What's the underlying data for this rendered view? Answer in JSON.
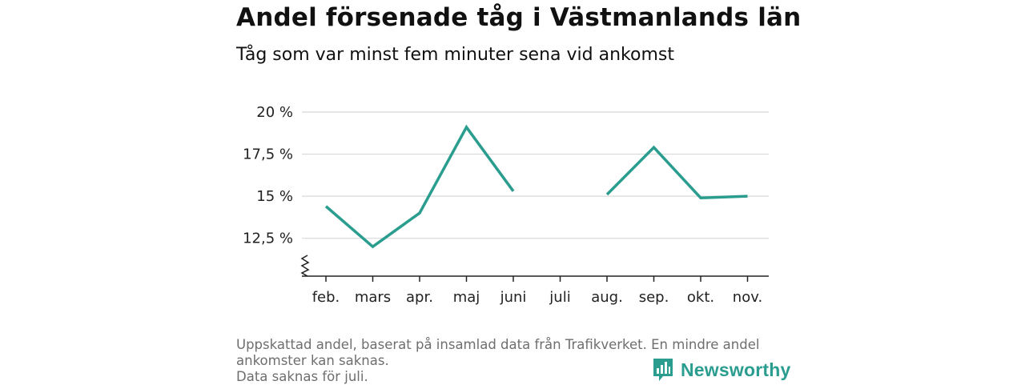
{
  "header": {
    "title": "Andel försenade tåg i Västmanlands län",
    "subtitle": "Tåg som var minst fem minuter sena vid ankomst"
  },
  "footer": {
    "lines": [
      "Uppskattad andel, baserat på insamlad data från Trafikverket. En mindre andel",
      "ankomster kan saknas.",
      "Data saknas för juli."
    ]
  },
  "logo": {
    "text": "Newsworthy",
    "icon": "newsworthy-bar-chart-icon",
    "color": "#2a9d8f"
  },
  "chart_data": {
    "type": "line",
    "categories": [
      "feb.",
      "mars",
      "apr.",
      "maj",
      "juni",
      "juli",
      "aug.",
      "sep.",
      "okt.",
      "nov."
    ],
    "series": [
      {
        "values": [
          14.4,
          12.0,
          14.0,
          19.1,
          15.3,
          null,
          15.1,
          17.9,
          14.9,
          15.0
        ],
        "color": "#2a9d8f"
      }
    ],
    "yticks": [
      12.5,
      15,
      17.5,
      20
    ],
    "ytick_labels": [
      "12,5 %",
      "15 %",
      "17,5 %",
      "20 %"
    ],
    "ylim": [
      10.25,
      20
    ],
    "axis_break": true,
    "grid": true,
    "xlabel": "",
    "ylabel": ""
  }
}
